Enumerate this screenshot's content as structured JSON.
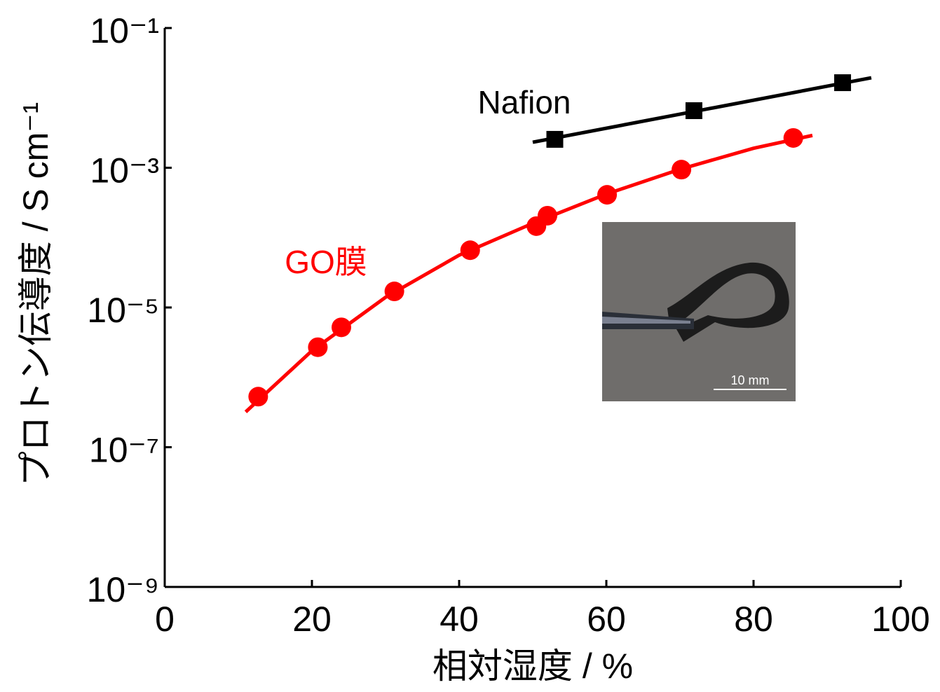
{
  "chart_data": {
    "type": "scatter",
    "xlabel": "相対湿度 / %",
    "ylabel": "プロトン伝導度 / S cm⁻¹",
    "xlim": [
      0,
      100
    ],
    "xticks": [
      0,
      20,
      40,
      60,
      80,
      100
    ],
    "ylim": [
      1e-09,
      0.1
    ],
    "ylog": true,
    "yticks": [
      {
        "value": 0.1,
        "label": "10⁻¹"
      },
      {
        "value": 0.001,
        "label": "10⁻³"
      },
      {
        "value": 1e-05,
        "label": "10⁻⁵"
      },
      {
        "value": 1e-07,
        "label": "10⁻⁷"
      },
      {
        "value": 1e-09,
        "label": "10⁻⁹"
      }
    ],
    "series": [
      {
        "name": "Nafion",
        "color": "#000000",
        "marker": "square",
        "x": [
          53.0,
          71.9,
          92.1
        ],
        "values": [
          0.00255,
          0.00656,
          0.0165
        ],
        "fit": {
          "x": [
            50,
            96
          ],
          "values": [
            0.00232,
            0.0194
          ]
        }
      },
      {
        "name": "GO膜",
        "color": "#ff0000",
        "marker": "circle",
        "x": [
          12.7,
          20.8,
          24.0,
          31.2,
          41.5,
          50.5,
          52.0,
          60.1,
          70.2,
          85.4
        ],
        "values": [
          5.3e-07,
          2.7e-06,
          5.2e-06,
          1.7e-05,
          6.6e-05,
          0.000146,
          0.000206,
          0.00041,
          0.00094,
          0.00267
        ],
        "fit": {
          "x": [
            11,
            20,
            30,
            40,
            50,
            60,
            70,
            80,
            88
          ],
          "values": [
            3.2e-07,
            2.4e-06,
            1.4e-05,
            5.6e-05,
            0.00016,
            0.00042,
            0.00095,
            0.0019,
            0.0029
          ]
        }
      }
    ],
    "inset_scale_label": "10 mm"
  }
}
